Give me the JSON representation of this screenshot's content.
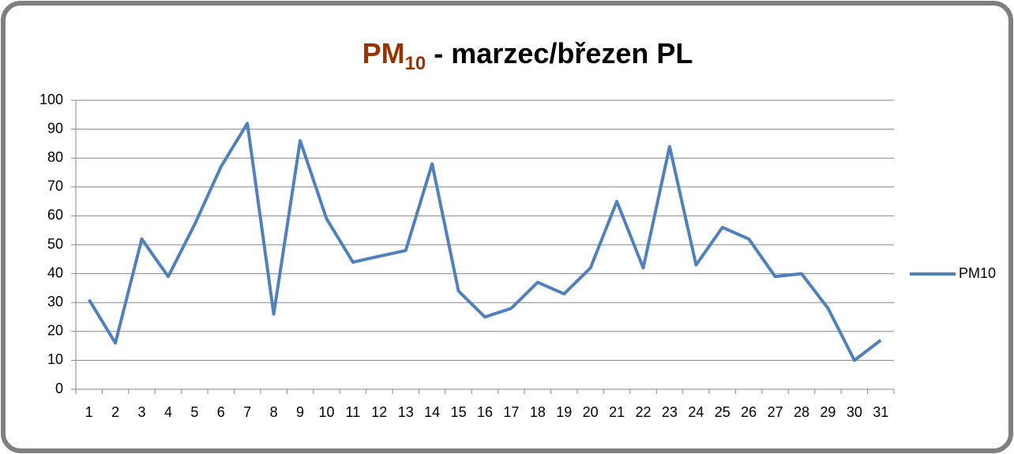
{
  "chart_data": {
    "type": "line",
    "title": {
      "main": "PM",
      "subscript": "10",
      "rest": " - marzec/březen  PL",
      "main_color": "#993300"
    },
    "categories": [
      "1",
      "2",
      "3",
      "4",
      "5",
      "6",
      "7",
      "8",
      "9",
      "10",
      "11",
      "12",
      "13",
      "14",
      "15",
      "16",
      "17",
      "18",
      "19",
      "20",
      "21",
      "22",
      "23",
      "24",
      "25",
      "26",
      "27",
      "28",
      "29",
      "30",
      "31"
    ],
    "series": [
      {
        "name": "PM10",
        "color": "#4f81bd",
        "values": [
          31,
          16,
          52,
          39,
          57,
          77,
          92,
          26,
          86,
          59,
          44,
          46,
          48,
          78,
          34,
          25,
          28,
          37,
          33,
          42,
          65,
          42,
          84,
          43,
          56,
          52,
          39,
          40,
          28,
          10,
          17
        ]
      }
    ],
    "ylim": [
      0,
      100
    ],
    "yticks": [
      0,
      10,
      20,
      30,
      40,
      50,
      60,
      70,
      80,
      90,
      100
    ],
    "grid": true,
    "legend": "right"
  }
}
